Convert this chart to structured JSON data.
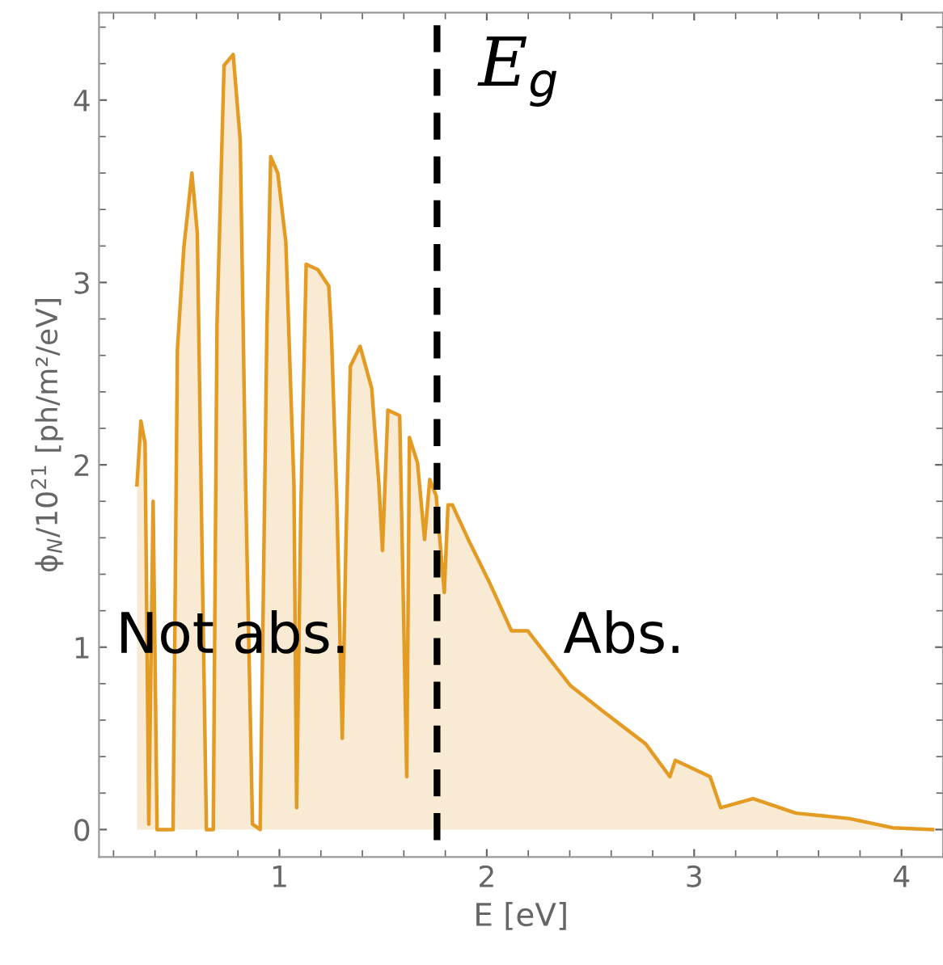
{
  "chart_data": {
    "type": "area",
    "xlabel": "E [eV]",
    "ylabel": "ϕ$_{N}$/10$^{21}$ [ph/m²/eV]",
    "x": [
      0.313,
      0.332,
      0.352,
      0.37,
      0.391,
      0.41,
      0.487,
      0.508,
      0.539,
      0.578,
      0.604,
      0.63,
      0.648,
      0.681,
      0.699,
      0.733,
      0.777,
      0.811,
      0.837,
      0.87,
      0.907,
      0.94,
      0.958,
      0.992,
      1.031,
      1.07,
      1.083,
      1.103,
      1.129,
      1.186,
      1.238,
      1.251,
      1.277,
      1.303,
      1.321,
      1.342,
      1.389,
      1.445,
      1.48,
      1.497,
      1.523,
      1.58,
      1.614,
      1.627,
      1.666,
      1.7,
      1.725,
      1.756,
      1.795,
      1.813,
      1.834,
      1.911,
      2.015,
      2.119,
      2.197,
      2.3,
      2.403,
      2.559,
      2.766,
      2.883,
      2.909,
      3.077,
      3.128,
      3.284,
      3.491,
      3.75,
      3.957,
      4.15
    ],
    "series": [
      {
        "color": "#e39b24",
        "values": [
          1.89,
          2.24,
          2.12,
          0.03,
          1.8,
          0,
          0,
          2.63,
          3.19,
          3.6,
          3.27,
          1.3,
          0,
          0,
          2.77,
          4.19,
          4.25,
          3.78,
          1.89,
          0.03,
          0,
          2.77,
          3.69,
          3.6,
          3.22,
          1.89,
          0.12,
          1.74,
          3.1,
          3.07,
          2.98,
          2.71,
          1.8,
          0.5,
          1.59,
          2.54,
          2.65,
          2.42,
          1.89,
          1.53,
          2.3,
          2.27,
          0.29,
          2.15,
          2.01,
          1.59,
          1.92,
          1.83,
          1.3,
          1.78,
          1.78,
          1.59,
          1.35,
          1.09,
          1.09,
          0.94,
          0.79,
          0.65,
          0.47,
          0.29,
          0.38,
          0.29,
          0.12,
          0.17,
          0.09,
          0.06,
          0.01,
          0
        ]
      }
    ],
    "xlim": [
      0.13,
      4.2
    ],
    "ylim": [
      -0.15,
      4.48
    ],
    "xticks": [
      1,
      2,
      3,
      4
    ],
    "yticks": [
      0,
      1,
      2,
      3,
      4
    ],
    "ref_lines": [
      {
        "axis": "x",
        "value": 1.76,
        "label": "E$_{g}$",
        "color": "#000000",
        "line_style": "dashed"
      }
    ],
    "annotations": [
      "Not abs.",
      "Abs."
    ],
    "grid": false
  }
}
